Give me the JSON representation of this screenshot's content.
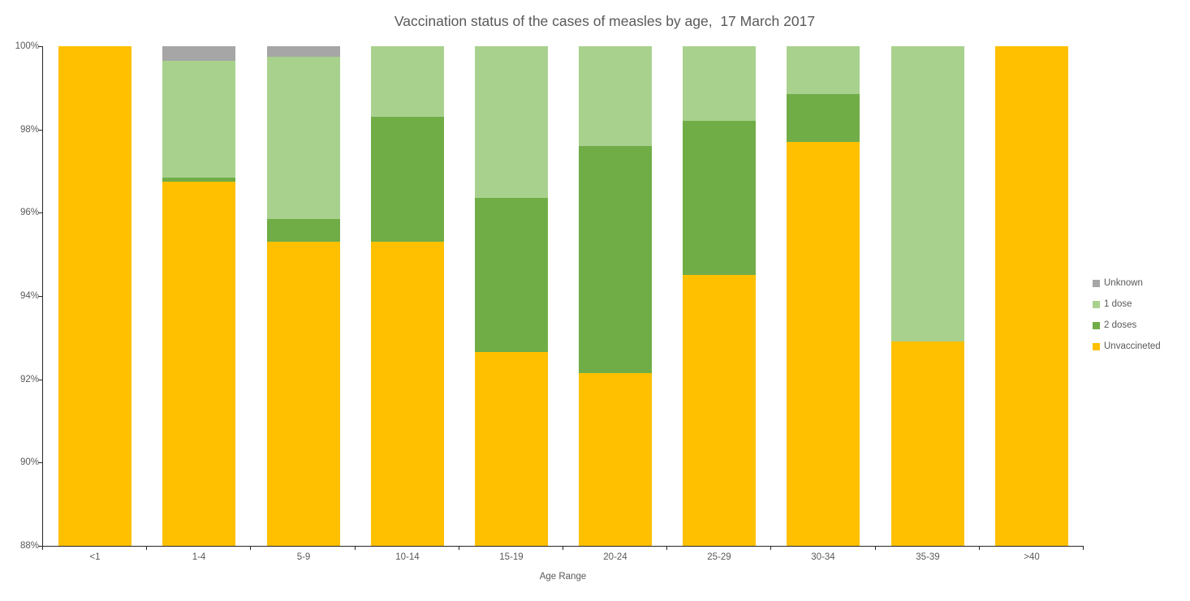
{
  "page": {
    "background": "#ffffff"
  },
  "chart_data": {
    "type": "bar",
    "stacked": true,
    "normalized_percent": true,
    "title": "Vaccination status of the cases of measles by age,  17 March 2017",
    "xlabel": "Age Range",
    "ylim": [
      88,
      100
    ],
    "yticks": [
      88,
      90,
      92,
      94,
      96,
      98,
      100
    ],
    "ytick_suffix": "%",
    "grid": false,
    "axis_color": "#262626",
    "text_color": "#595959",
    "categories": [
      "<1",
      "1-4",
      "5-9",
      "10-14",
      "15-19",
      "20-24",
      "25-29",
      "30-34",
      "35-39",
      ">40"
    ],
    "series": [
      {
        "name": "Unvaccineted",
        "color": "#FFC000",
        "values": [
          100,
          96.75,
          95.3,
          95.3,
          92.65,
          92.15,
          94.5,
          97.7,
          92.9,
          100
        ]
      },
      {
        "name": "2 doses",
        "color": "#70AD47",
        "values": [
          0,
          0.1,
          0.55,
          3.0,
          3.7,
          5.45,
          3.7,
          1.15,
          0,
          0
        ]
      },
      {
        "name": "1 dose",
        "color": "#A9D18E",
        "values": [
          0,
          2.8,
          3.9,
          1.7,
          3.65,
          2.4,
          1.8,
          1.15,
          7.1,
          0
        ]
      },
      {
        "name": "Unknown",
        "color": "#A6A6A6",
        "values": [
          0,
          0.35,
          0.25,
          0,
          0,
          0,
          0,
          0,
          0,
          0
        ]
      }
    ],
    "legend": {
      "position": "right",
      "entries": [
        "Unknown",
        "1 dose",
        "2 doses",
        "Unvaccineted"
      ]
    }
  }
}
